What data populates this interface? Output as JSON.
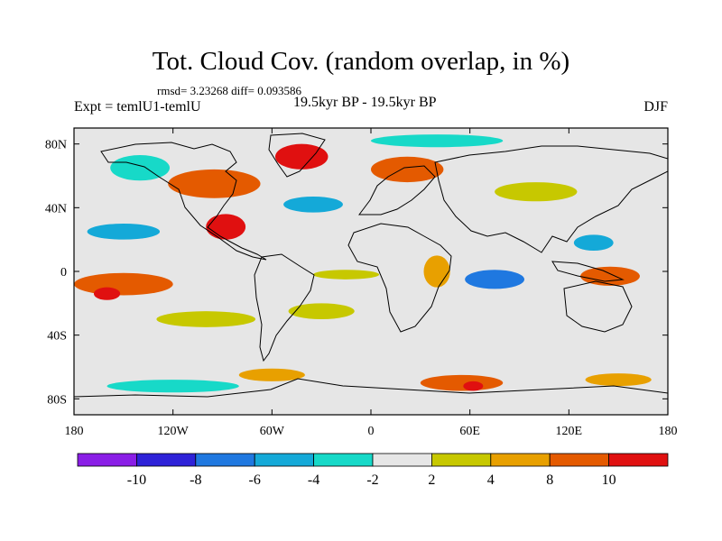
{
  "header": {
    "title": "Tot. Cloud Cov. (random overlap, in %)",
    "stats": "rmsd= 3.23268 diff= 0.093586",
    "left_string": "Expt = temlU1-temlU",
    "center_string": "19.5kyr BP - 19.5kyr BP",
    "right_string": "DJF"
  },
  "chart_data": {
    "type": "heatmap",
    "title": "Tot. Cloud Cov. (random overlap, in %)",
    "xlabel": "",
    "ylabel": "",
    "xlim": [
      -180,
      180
    ],
    "ylim": [
      -90,
      90
    ],
    "x_ticks": [
      {
        "value": -180,
        "label": "180"
      },
      {
        "value": -120,
        "label": "120W"
      },
      {
        "value": -60,
        "label": "60W"
      },
      {
        "value": 0,
        "label": "0"
      },
      {
        "value": 60,
        "label": "60E"
      },
      {
        "value": 120,
        "label": "120E"
      },
      {
        "value": 180,
        "label": "180"
      }
    ],
    "y_ticks": [
      {
        "value": 80,
        "label": "80N"
      },
      {
        "value": 40,
        "label": "40N"
      },
      {
        "value": 0,
        "label": "0"
      },
      {
        "value": -40,
        "label": "40S"
      },
      {
        "value": -80,
        "label": "80S"
      }
    ],
    "colorbar": {
      "levels": [
        "-10",
        "-8",
        "-6",
        "-4",
        "-2",
        "2",
        "4",
        "8",
        "10"
      ],
      "colors": [
        "#8a1ee6",
        "#2e22d8",
        "#1f78e0",
        "#14a9d8",
        "#17d9c8",
        "#e6e6e6",
        "#c7c800",
        "#e8a000",
        "#e45a00",
        "#e01010"
      ]
    },
    "background_color": "#e6e6e6",
    "anomaly_regions": [
      {
        "region": "Canada / Hudson Bay",
        "lon": -95,
        "lat": 55,
        "rx": 28,
        "ry": 9,
        "color_index": 8
      },
      {
        "region": "Greenland",
        "lon": -42,
        "lat": 72,
        "rx": 16,
        "ry": 8,
        "color_index": 9
      },
      {
        "region": "Gulf of Mexico / SE USA",
        "lon": -88,
        "lat": 28,
        "rx": 12,
        "ry": 8,
        "color_index": 9
      },
      {
        "region": "North Atlantic",
        "lon": -35,
        "lat": 42,
        "rx": 18,
        "ry": 5,
        "color_index": 3
      },
      {
        "region": "Scandinavia",
        "lon": 22,
        "lat": 64,
        "rx": 22,
        "ry": 8,
        "color_index": 8
      },
      {
        "region": "NE Pacific",
        "lon": -140,
        "lat": 65,
        "rx": 18,
        "ry": 8,
        "color_index": 4
      },
      {
        "region": "Central Pacific",
        "lon": -150,
        "lat": 25,
        "rx": 22,
        "ry": 5,
        "color_index": 3
      },
      {
        "region": "East Pacific",
        "lon": -150,
        "lat": -8,
        "rx": 30,
        "ry": 7,
        "color_index": 8
      },
      {
        "region": "Pacific west",
        "lon": -160,
        "lat": -14,
        "rx": 8,
        "ry": 4,
        "color_index": 9
      },
      {
        "region": "Equatorial Atlantic",
        "lon": -15,
        "lat": -2,
        "rx": 20,
        "ry": 3,
        "color_index": 6
      },
      {
        "region": "Indian Ocean",
        "lon": 75,
        "lat": -5,
        "rx": 18,
        "ry": 6,
        "color_index": 2
      },
      {
        "region": "Maritime continent",
        "lon": 145,
        "lat": -3,
        "rx": 18,
        "ry": 6,
        "color_index": 8
      },
      {
        "region": "Western Pacific",
        "lon": 135,
        "lat": 18,
        "rx": 12,
        "ry": 5,
        "color_index": 3
      },
      {
        "region": "East Africa",
        "lon": 40,
        "lat": 0,
        "rx": 8,
        "ry": 10,
        "color_index": 7
      },
      {
        "region": "South Atlantic",
        "lon": -30,
        "lat": -25,
        "rx": 20,
        "ry": 5,
        "color_index": 6
      },
      {
        "region": "South Pacific",
        "lon": -100,
        "lat": -30,
        "rx": 30,
        "ry": 5,
        "color_index": 6
      },
      {
        "region": "Southern Ocean Indian sector",
        "lon": 55,
        "lat": -70,
        "rx": 25,
        "ry": 5,
        "color_index": 8
      },
      {
        "region": "Southern Ocean 60E",
        "lon": 62,
        "lat": -72,
        "rx": 6,
        "ry": 3,
        "color_index": 9
      },
      {
        "region": "Southern Ocean Pacific",
        "lon": -120,
        "lat": -72,
        "rx": 40,
        "ry": 4,
        "color_index": 4
      },
      {
        "region": "Southern Ocean Atlantic",
        "lon": -60,
        "lat": -65,
        "rx": 20,
        "ry": 4,
        "color_index": 7
      },
      {
        "region": "Southern Ocean 150E",
        "lon": 150,
        "lat": -68,
        "rx": 20,
        "ry": 4,
        "color_index": 7
      },
      {
        "region": "Siberia",
        "lon": 100,
        "lat": 50,
        "rx": 25,
        "ry": 6,
        "color_index": 6
      },
      {
        "region": "Arctic Ocean",
        "lon": 40,
        "lat": 82,
        "rx": 40,
        "ry": 4,
        "color_index": 4
      }
    ]
  }
}
